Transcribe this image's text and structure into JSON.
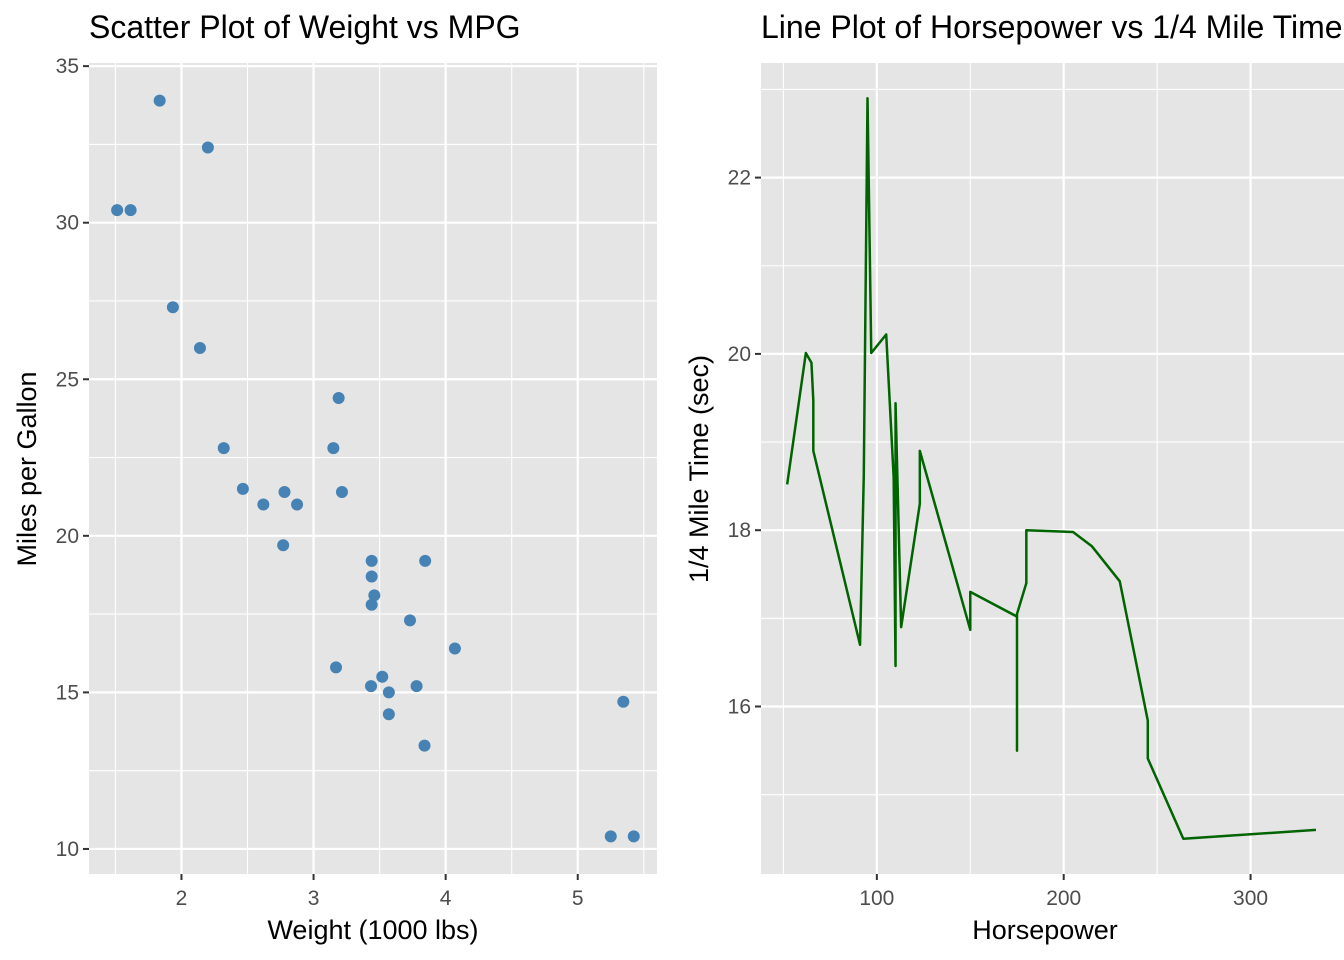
{
  "chart_data": [
    {
      "type": "scatter",
      "title": "Scatter Plot of Weight vs MPG",
      "xlabel": "Weight (1000 lbs)",
      "ylabel": "Miles per Gallon",
      "xlim": [
        1.3,
        5.6
      ],
      "ylim": [
        9.2,
        35.1
      ],
      "x_ticks": [
        2,
        3,
        4,
        5
      ],
      "x_tick_labels": [
        "2",
        "3",
        "4",
        "5"
      ],
      "y_ticks": [
        10,
        15,
        20,
        25,
        30,
        35
      ],
      "y_tick_labels": [
        "10",
        "15",
        "20",
        "25",
        "30",
        "35"
      ],
      "grid": true,
      "point_color": "#4682b4",
      "points": [
        {
          "x": 2.62,
          "y": 21.0
        },
        {
          "x": 2.875,
          "y": 21.0
        },
        {
          "x": 2.32,
          "y": 22.8
        },
        {
          "x": 3.215,
          "y": 21.4
        },
        {
          "x": 3.44,
          "y": 18.7
        },
        {
          "x": 3.46,
          "y": 18.1
        },
        {
          "x": 3.57,
          "y": 14.3
        },
        {
          "x": 3.19,
          "y": 24.4
        },
        {
          "x": 3.15,
          "y": 22.8
        },
        {
          "x": 3.44,
          "y": 19.2
        },
        {
          "x": 3.44,
          "y": 17.8
        },
        {
          "x": 4.07,
          "y": 16.4
        },
        {
          "x": 3.73,
          "y": 17.3
        },
        {
          "x": 3.78,
          "y": 15.2
        },
        {
          "x": 5.25,
          "y": 10.4
        },
        {
          "x": 5.424,
          "y": 10.4
        },
        {
          "x": 5.345,
          "y": 14.7
        },
        {
          "x": 2.2,
          "y": 32.4
        },
        {
          "x": 1.615,
          "y": 30.4
        },
        {
          "x": 1.835,
          "y": 33.9
        },
        {
          "x": 2.465,
          "y": 21.5
        },
        {
          "x": 3.52,
          "y": 15.5
        },
        {
          "x": 3.435,
          "y": 15.2
        },
        {
          "x": 3.84,
          "y": 13.3
        },
        {
          "x": 3.845,
          "y": 19.2
        },
        {
          "x": 1.935,
          "y": 27.3
        },
        {
          "x": 2.14,
          "y": 26.0
        },
        {
          "x": 1.513,
          "y": 30.4
        },
        {
          "x": 3.17,
          "y": 15.8
        },
        {
          "x": 2.77,
          "y": 19.7
        },
        {
          "x": 3.57,
          "y": 15.0
        },
        {
          "x": 2.78,
          "y": 21.4
        }
      ]
    },
    {
      "type": "line",
      "title": "Line Plot of Horsepower vs 1/4 Mile Time",
      "xlabel": "Horsepower",
      "ylabel": "1/4 Mile Time (sec)",
      "xlim": [
        38,
        350
      ],
      "ylim": [
        14.1,
        23.3
      ],
      "x_ticks": [
        100,
        200,
        300
      ],
      "x_tick_labels": [
        "100",
        "200",
        "300"
      ],
      "y_ticks": [
        16,
        18,
        20,
        22
      ],
      "y_tick_labels": [
        "16",
        "18",
        "20",
        "22"
      ],
      "grid": true,
      "line_color": "#006400",
      "points": [
        {
          "x": 52,
          "y": 18.52
        },
        {
          "x": 62,
          "y": 20.01
        },
        {
          "x": 65,
          "y": 19.9
        },
        {
          "x": 66,
          "y": 19.47
        },
        {
          "x": 66,
          "y": 18.9
        },
        {
          "x": 91,
          "y": 16.7
        },
        {
          "x": 93,
          "y": 18.61
        },
        {
          "x": 95,
          "y": 22.9
        },
        {
          "x": 97,
          "y": 20.01
        },
        {
          "x": 105,
          "y": 20.22
        },
        {
          "x": 109,
          "y": 18.6
        },
        {
          "x": 110,
          "y": 16.46
        },
        {
          "x": 110,
          "y": 17.02
        },
        {
          "x": 110,
          "y": 19.44
        },
        {
          "x": 113,
          "y": 16.9
        },
        {
          "x": 123,
          "y": 18.3
        },
        {
          "x": 123,
          "y": 18.9
        },
        {
          "x": 150,
          "y": 16.87
        },
        {
          "x": 150,
          "y": 17.3
        },
        {
          "x": 175,
          "y": 17.02
        },
        {
          "x": 175,
          "y": 15.5
        },
        {
          "x": 175,
          "y": 17.05
        },
        {
          "x": 180,
          "y": 17.4
        },
        {
          "x": 180,
          "y": 17.6
        },
        {
          "x": 180,
          "y": 18.0
        },
        {
          "x": 205,
          "y": 17.98
        },
        {
          "x": 215,
          "y": 17.82
        },
        {
          "x": 230,
          "y": 17.42
        },
        {
          "x": 245,
          "y": 15.84
        },
        {
          "x": 245,
          "y": 15.41
        },
        {
          "x": 264,
          "y": 14.5
        },
        {
          "x": 335,
          "y": 14.6
        }
      ]
    }
  ]
}
